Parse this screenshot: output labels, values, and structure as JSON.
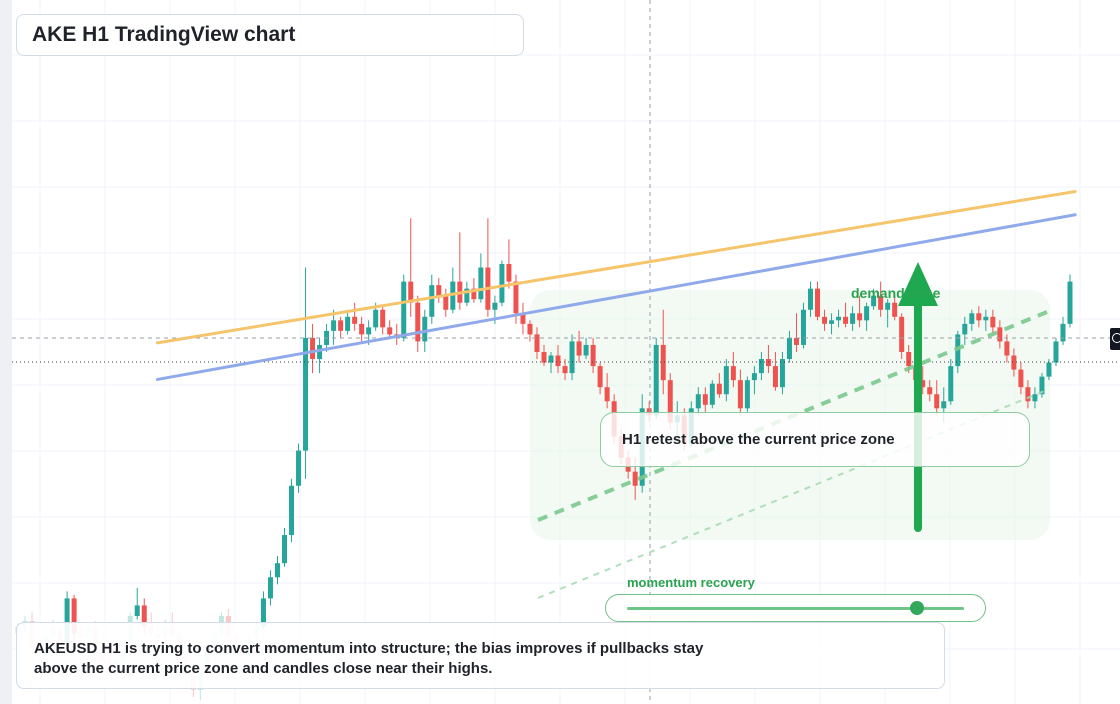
{
  "header": {
    "title": "AKE H1 TradingView chart"
  },
  "callout": {
    "text": "H1 retest above the current price zone"
  },
  "momentum": {
    "label": "momentum recovery",
    "level": 0.86
  },
  "demand": {
    "label": "demand zone"
  },
  "summary": {
    "text": "AKEUSD H1 is trying to convert momentum into structure; the bias improves if pullbacks stay above the current price zone and candles close near their highs."
  },
  "colors": {
    "bull": "#26a69a",
    "bear": "#ef5350",
    "bull_faded": "#bfe6e1",
    "bear_faded": "#f8c9c8",
    "orange_line": "#f5c46b",
    "blue_line": "#8fa9ea",
    "accent_green": "#1ea84f",
    "zone_fill": "#e8f6ea"
  },
  "icons": {
    "price_marker": "clock-icon",
    "arrow": "arrow-up-icon"
  },
  "chart_data": {
    "type": "candlestick",
    "title": "AKE H1 TradingView chart",
    "grid": true,
    "candles": [
      [
        0.6,
        0.75,
        0.5,
        0.7
      ],
      [
        0.7,
        0.85,
        0.6,
        0.78
      ],
      [
        0.78,
        0.9,
        0.2,
        0.4
      ],
      [
        0.4,
        0.55,
        0.25,
        0.3
      ],
      [
        0.3,
        0.6,
        0.28,
        0.55
      ],
      [
        0.55,
        0.8,
        0.5,
        0.65
      ],
      [
        0.65,
        0.7,
        0.35,
        0.45
      ],
      [
        0.45,
        1.2,
        0.4,
        1.1
      ],
      [
        1.1,
        1.15,
        0.5,
        0.6
      ],
      [
        0.6,
        0.7,
        0.45,
        0.55
      ],
      [
        0.55,
        0.75,
        0.4,
        0.68
      ],
      [
        0.68,
        0.78,
        0.35,
        0.4
      ],
      [
        0.4,
        0.5,
        0.1,
        0.2
      ],
      [
        0.2,
        0.35,
        -0.1,
        0.0
      ],
      [
        0.0,
        0.25,
        -0.05,
        0.2
      ],
      [
        0.2,
        0.55,
        0.15,
        0.45
      ],
      [
        0.45,
        0.9,
        0.4,
        0.85
      ],
      [
        0.85,
        1.25,
        0.8,
        1.0
      ],
      [
        1.0,
        1.1,
        0.6,
        0.7
      ],
      [
        0.7,
        0.9,
        0.55,
        0.6
      ],
      [
        0.6,
        0.75,
        0.45,
        0.55
      ],
      [
        0.55,
        0.8,
        0.5,
        0.7
      ],
      [
        0.7,
        0.9,
        0.55,
        0.6
      ],
      [
        0.6,
        0.65,
        0.2,
        0.3
      ],
      [
        0.3,
        0.4,
        -0.1,
        0.0
      ],
      [
        0.0,
        0.2,
        -0.3,
        -0.2
      ],
      [
        -0.2,
        0.1,
        -0.35,
        0.05
      ],
      [
        0.05,
        0.4,
        0.0,
        0.35
      ],
      [
        0.35,
        0.65,
        0.3,
        0.6
      ],
      [
        0.6,
        0.9,
        0.55,
        0.85
      ],
      [
        0.85,
        0.95,
        0.5,
        0.55
      ],
      [
        0.55,
        0.6,
        0.35,
        0.4
      ],
      [
        0.4,
        0.5,
        0.2,
        0.3
      ],
      [
        0.3,
        0.6,
        0.25,
        0.55
      ],
      [
        0.55,
        0.75,
        0.5,
        0.7
      ],
      [
        0.7,
        1.2,
        0.65,
        1.1
      ],
      [
        1.1,
        1.5,
        1.0,
        1.4
      ],
      [
        1.4,
        1.7,
        1.3,
        1.6
      ],
      [
        1.6,
        2.1,
        1.55,
        2.0
      ],
      [
        2.0,
        2.8,
        1.9,
        2.7
      ],
      [
        2.7,
        3.3,
        2.6,
        3.2
      ],
      [
        3.2,
        5.8,
        2.8,
        4.8
      ],
      [
        4.8,
        5.0,
        4.3,
        4.5
      ],
      [
        4.5,
        4.8,
        4.3,
        4.7
      ],
      [
        4.7,
        5.0,
        4.6,
        4.9
      ],
      [
        4.9,
        5.2,
        4.7,
        5.05
      ],
      [
        5.05,
        5.1,
        4.8,
        4.9
      ],
      [
        4.9,
        5.2,
        4.85,
        5.1
      ],
      [
        5.1,
        5.3,
        4.9,
        5.0
      ],
      [
        5.0,
        5.1,
        4.75,
        4.85
      ],
      [
        4.85,
        5.05,
        4.7,
        4.95
      ],
      [
        4.95,
        5.3,
        4.9,
        5.2
      ],
      [
        5.2,
        5.25,
        4.85,
        4.95
      ],
      [
        4.95,
        5.05,
        4.8,
        4.85
      ],
      [
        4.85,
        5.0,
        4.7,
        4.8
      ],
      [
        4.8,
        5.7,
        4.75,
        5.6
      ],
      [
        5.6,
        6.5,
        5.1,
        5.3
      ],
      [
        5.3,
        5.4,
        4.6,
        4.75
      ],
      [
        4.75,
        5.2,
        4.6,
        5.1
      ],
      [
        5.1,
        5.7,
        5.0,
        5.55
      ],
      [
        5.55,
        5.65,
        5.3,
        5.4
      ],
      [
        5.4,
        5.5,
        5.1,
        5.2
      ],
      [
        5.2,
        5.8,
        5.15,
        5.6
      ],
      [
        5.6,
        6.3,
        5.2,
        5.3
      ],
      [
        5.3,
        5.6,
        5.25,
        5.5
      ],
      [
        5.5,
        5.65,
        5.3,
        5.35
      ],
      [
        5.35,
        6.0,
        5.3,
        5.8
      ],
      [
        5.8,
        6.5,
        5.1,
        5.2
      ],
      [
        5.2,
        5.4,
        5.0,
        5.3
      ],
      [
        5.3,
        5.9,
        5.25,
        5.85
      ],
      [
        5.85,
        6.2,
        5.5,
        5.6
      ],
      [
        5.6,
        5.7,
        5.0,
        5.15
      ],
      [
        5.15,
        5.3,
        4.85,
        5.0
      ],
      [
        5.0,
        5.05,
        4.75,
        4.85
      ],
      [
        4.85,
        4.95,
        4.5,
        4.6
      ],
      [
        4.6,
        4.7,
        4.4,
        4.45
      ],
      [
        4.45,
        4.6,
        4.3,
        4.55
      ],
      [
        4.55,
        4.7,
        4.3,
        4.4
      ],
      [
        4.4,
        4.5,
        4.2,
        4.3
      ],
      [
        4.3,
        4.85,
        4.2,
        4.75
      ],
      [
        4.75,
        4.9,
        4.45,
        4.55
      ],
      [
        4.55,
        4.8,
        4.5,
        4.7
      ],
      [
        4.7,
        4.8,
        4.3,
        4.4
      ],
      [
        4.4,
        4.45,
        4.0,
        4.1
      ],
      [
        4.1,
        4.3,
        3.8,
        3.9
      ],
      [
        3.9,
        4.0,
        3.3,
        3.4
      ],
      [
        3.4,
        3.5,
        3.0,
        3.1
      ],
      [
        3.1,
        3.2,
        2.8,
        2.9
      ],
      [
        2.9,
        3.1,
        2.5,
        2.7
      ],
      [
        2.7,
        4.0,
        2.6,
        3.8
      ],
      [
        3.8,
        3.9,
        3.6,
        3.7
      ],
      [
        3.7,
        4.8,
        3.65,
        4.7
      ],
      [
        4.7,
        5.2,
        4.0,
        4.2
      ],
      [
        4.2,
        4.3,
        3.5,
        3.6
      ],
      [
        3.6,
        3.9,
        3.3,
        3.7
      ],
      [
        3.7,
        3.8,
        3.2,
        3.3
      ],
      [
        3.3,
        3.9,
        3.25,
        3.8
      ],
      [
        3.8,
        4.1,
        3.7,
        4.0
      ],
      [
        4.0,
        4.1,
        3.75,
        3.85
      ],
      [
        3.85,
        4.2,
        3.8,
        4.15
      ],
      [
        4.15,
        4.3,
        3.95,
        4.0
      ],
      [
        4.0,
        4.5,
        3.9,
        4.4
      ],
      [
        4.4,
        4.6,
        4.1,
        4.2
      ],
      [
        4.2,
        4.35,
        3.7,
        3.8
      ],
      [
        3.8,
        4.25,
        3.75,
        4.2
      ],
      [
        4.2,
        4.4,
        4.0,
        4.3
      ],
      [
        4.3,
        4.6,
        4.2,
        4.5
      ],
      [
        4.5,
        4.7,
        4.3,
        4.4
      ],
      [
        4.4,
        4.6,
        4.05,
        4.1
      ],
      [
        4.1,
        4.6,
        4.0,
        4.5
      ],
      [
        4.5,
        4.9,
        4.45,
        4.8
      ],
      [
        4.8,
        5.15,
        4.6,
        4.7
      ],
      [
        4.7,
        5.3,
        4.65,
        5.2
      ],
      [
        5.2,
        5.6,
        5.1,
        5.5
      ],
      [
        5.5,
        5.6,
        5.05,
        5.1
      ],
      [
        5.1,
        5.2,
        4.9,
        5.0
      ],
      [
        5.0,
        5.15,
        4.85,
        5.05
      ],
      [
        5.05,
        5.2,
        4.95,
        5.1
      ],
      [
        5.1,
        5.3,
        4.95,
        5.0
      ],
      [
        5.0,
        5.25,
        4.9,
        5.15
      ],
      [
        5.15,
        5.4,
        4.95,
        5.05
      ],
      [
        5.05,
        5.3,
        4.9,
        5.25
      ],
      [
        5.25,
        5.5,
        5.2,
        5.4
      ],
      [
        5.4,
        5.6,
        5.1,
        5.2
      ],
      [
        5.2,
        5.35,
        4.95,
        5.3
      ],
      [
        5.3,
        5.4,
        5.05,
        5.1
      ],
      [
        5.1,
        5.15,
        4.5,
        4.6
      ],
      [
        4.6,
        4.7,
        4.3,
        4.4
      ],
      [
        4.4,
        4.5,
        4.1,
        4.2
      ],
      [
        4.2,
        4.4,
        4.0,
        4.1
      ],
      [
        4.1,
        4.2,
        3.9,
        4.0
      ],
      [
        4.0,
        4.2,
        3.7,
        3.8
      ],
      [
        3.8,
        4.1,
        3.6,
        3.9
      ],
      [
        3.9,
        4.5,
        3.85,
        4.4
      ],
      [
        4.4,
        4.9,
        4.3,
        4.85
      ],
      [
        4.85,
        5.1,
        4.7,
        5.0
      ],
      [
        5.0,
        5.2,
        4.9,
        5.15
      ],
      [
        5.15,
        5.25,
        4.95,
        5.05
      ],
      [
        5.05,
        5.2,
        4.9,
        5.1
      ],
      [
        5.1,
        5.2,
        4.85,
        4.95
      ],
      [
        4.95,
        5.05,
        4.65,
        4.75
      ],
      [
        4.75,
        4.85,
        4.45,
        4.55
      ],
      [
        4.55,
        4.65,
        4.25,
        4.35
      ],
      [
        4.35,
        4.45,
        4.0,
        4.1
      ],
      [
        4.1,
        4.2,
        3.8,
        3.9
      ],
      [
        3.9,
        4.1,
        3.8,
        4.0
      ],
      [
        4.0,
        4.3,
        3.95,
        4.25
      ],
      [
        4.25,
        4.5,
        4.2,
        4.45
      ],
      [
        4.45,
        4.8,
        4.4,
        4.75
      ],
      [
        4.75,
        5.1,
        4.7,
        5.0
      ],
      [
        5.0,
        5.7,
        4.95,
        5.6
      ]
    ],
    "trendlines": [
      {
        "color": "orange",
        "from": [
          0.045,
          4.73
        ],
        "to": [
          0.96,
          6.88
        ]
      },
      {
        "color": "blue",
        "from": [
          0.045,
          4.21
        ],
        "to": [
          0.96,
          6.55
        ]
      }
    ],
    "annotations": [
      "H1 retest above the current price zone",
      "momentum recovery",
      "demand zone"
    ]
  }
}
